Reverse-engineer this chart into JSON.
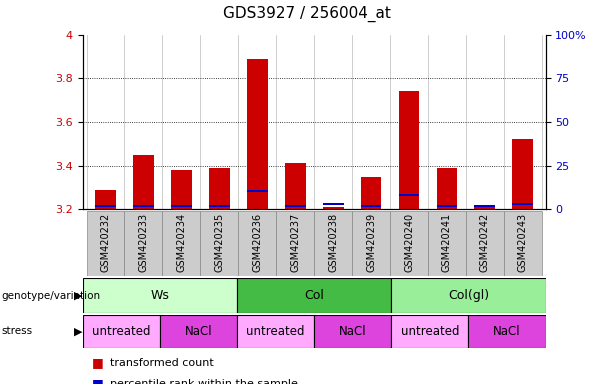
{
  "title": "GDS3927 / 256004_at",
  "samples": [
    "GSM420232",
    "GSM420233",
    "GSM420234",
    "GSM420235",
    "GSM420236",
    "GSM420237",
    "GSM420238",
    "GSM420239",
    "GSM420240",
    "GSM420241",
    "GSM420242",
    "GSM420243"
  ],
  "red_values": [
    3.29,
    3.45,
    3.38,
    3.39,
    3.89,
    3.41,
    3.21,
    3.35,
    3.74,
    3.39,
    3.21,
    3.52
  ],
  "blue_values": [
    3.215,
    3.215,
    3.215,
    3.215,
    3.285,
    3.215,
    3.225,
    3.215,
    3.265,
    3.215,
    3.215,
    3.225
  ],
  "ylim_left": [
    3.2,
    4.0
  ],
  "ylim_right": [
    0,
    100
  ],
  "yticks_left": [
    3.2,
    3.4,
    3.6,
    3.8,
    4.0
  ],
  "yticks_right": [
    0,
    25,
    50,
    75,
    100
  ],
  "ytick_labels_left": [
    "3.2",
    "3.4",
    "3.6",
    "3.8",
    "4"
  ],
  "ytick_labels_right": [
    "0",
    "25",
    "50",
    "75",
    "100%"
  ],
  "bar_width": 0.55,
  "red_color": "#cc0000",
  "blue_color": "#0000cc",
  "base_value": 3.2,
  "groups": [
    {
      "label": "Ws",
      "start": 0,
      "end": 3,
      "color": "#ccffcc"
    },
    {
      "label": "Col",
      "start": 4,
      "end": 7,
      "color": "#44bb44"
    },
    {
      "label": "Col(gl)",
      "start": 8,
      "end": 11,
      "color": "#99ee99"
    }
  ],
  "stress": [
    {
      "label": "untreated",
      "start": 0,
      "end": 1,
      "color": "#ffaaff"
    },
    {
      "label": "NaCl",
      "start": 2,
      "end": 3,
      "color": "#dd44dd"
    },
    {
      "label": "untreated",
      "start": 4,
      "end": 5,
      "color": "#ffaaff"
    },
    {
      "label": "NaCl",
      "start": 6,
      "end": 7,
      "color": "#dd44dd"
    },
    {
      "label": "untreated",
      "start": 8,
      "end": 9,
      "color": "#ffaaff"
    },
    {
      "label": "NaCl",
      "start": 10,
      "end": 11,
      "color": "#dd44dd"
    }
  ],
  "legend_items": [
    {
      "label": "transformed count",
      "color": "#cc0000"
    },
    {
      "label": "percentile rank within the sample",
      "color": "#0000cc"
    }
  ],
  "title_fontsize": 11,
  "tick_fontsize": 8,
  "sample_fontsize": 7,
  "plot_bg": "#ffffff",
  "xtick_bg": "#cccccc"
}
